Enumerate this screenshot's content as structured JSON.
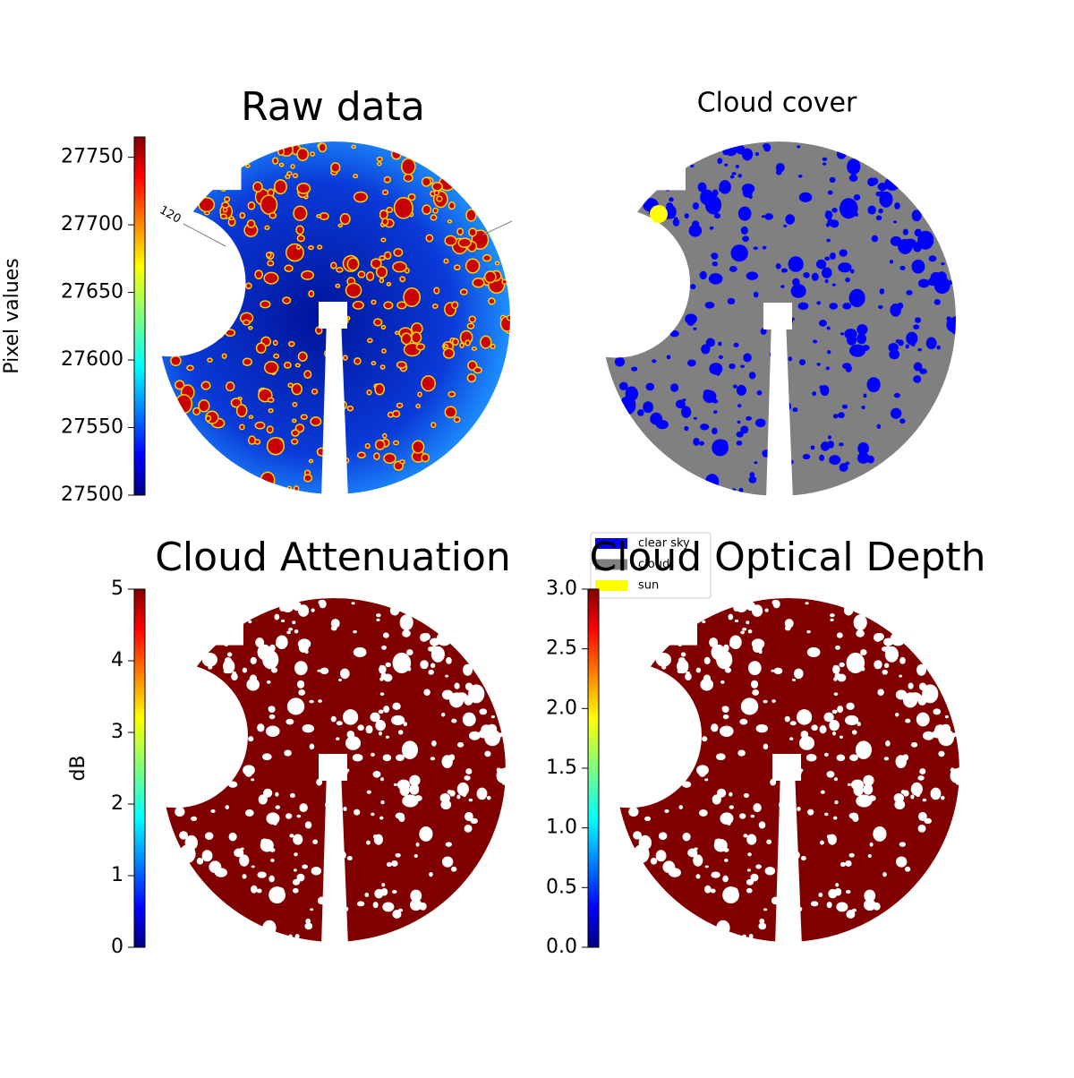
{
  "chart_data": [
    {
      "type": "image",
      "title": "Raw data",
      "ylabel": "Pixel values",
      "colormap": "jet",
      "annotation": "120",
      "ylim": [
        27500,
        27765
      ],
      "yticks": [
        27500,
        27550,
        27600,
        27650,
        27700,
        27750
      ]
    },
    {
      "type": "image",
      "title": "Cloud cover",
      "base_color": "#808080",
      "legend": [
        {
          "name": "clear sky",
          "color": "#0000ff"
        },
        {
          "name": "cloud",
          "color": "#808080"
        },
        {
          "name": "sun",
          "color": "#ffff00"
        }
      ]
    },
    {
      "type": "image",
      "title": "Cloud Attenuation",
      "ylabel": "dB",
      "colormap": "jet",
      "ylim": [
        0,
        5
      ],
      "yticks": [
        0,
        1,
        2,
        3,
        4,
        5
      ]
    },
    {
      "type": "image",
      "title": "Cloud Optical Depth",
      "colormap": "jet",
      "ylim": [
        0,
        3
      ],
      "yticks": [
        {
          "value": 0,
          "label": "0.0"
        },
        {
          "value": 0.5,
          "label": "0.5"
        },
        {
          "value": 1,
          "label": "1.0"
        },
        {
          "value": 1.5,
          "label": "1.5"
        },
        {
          "value": 2,
          "label": "2.0"
        },
        {
          "value": 2.5,
          "label": "2.5"
        },
        {
          "value": 3,
          "label": "3.0"
        }
      ]
    }
  ]
}
